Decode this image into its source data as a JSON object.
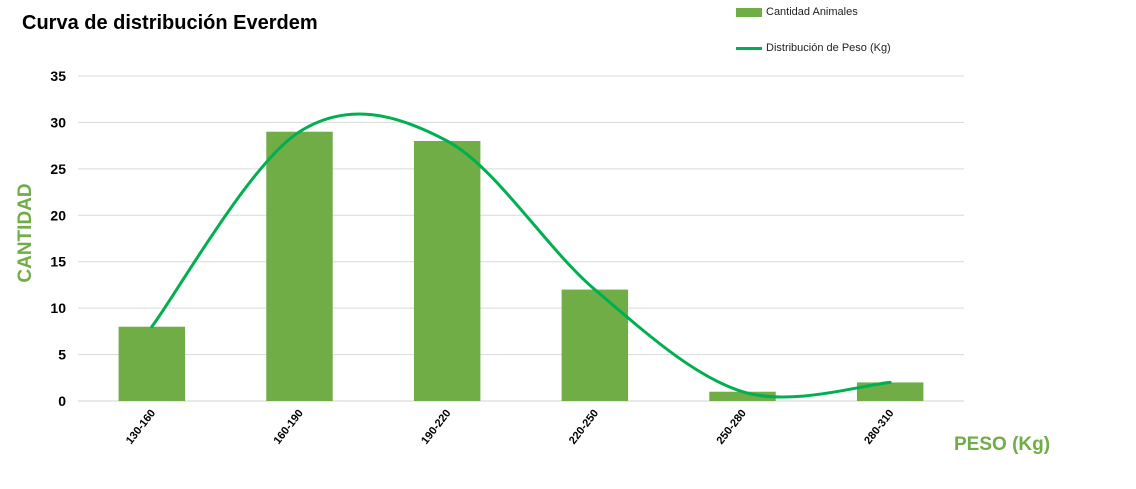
{
  "chart_data": {
    "type": "bar",
    "title": "Curva de distribución Everdem",
    "categories": [
      "130-160",
      "160-190",
      "190-220",
      "220-250",
      "250-280",
      "280-310"
    ],
    "series": [
      {
        "name": "Cantidad Animales",
        "type": "bar",
        "values": [
          8,
          29,
          28,
          12,
          1,
          2
        ],
        "color": "#70ad47"
      },
      {
        "name": "Distribución de Peso (Kg)",
        "type": "line",
        "smooth": true,
        "values": [
          8,
          29,
          28,
          12,
          1,
          2
        ],
        "color": "#00b050"
      }
    ],
    "xlabel": "PESO (Kg)",
    "ylabel": "CANTIDAD",
    "ylim": [
      0,
      35
    ],
    "yticks": [
      "0",
      "5",
      "10",
      "15",
      "20",
      "25",
      "30",
      "35"
    ],
    "grid": true,
    "legend_position": "top-right",
    "axis_title_color": "#70ad47"
  }
}
